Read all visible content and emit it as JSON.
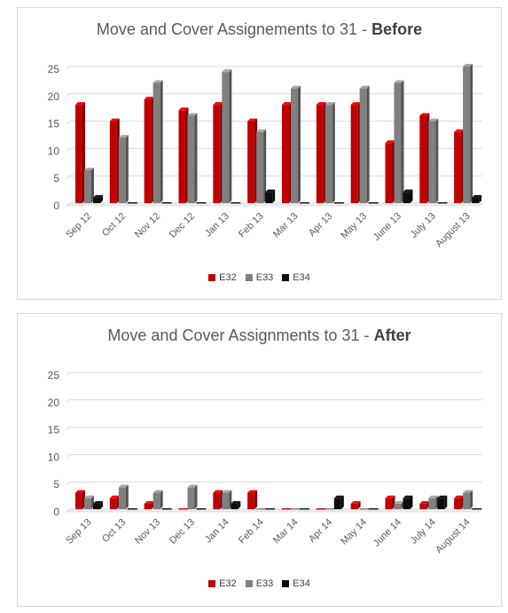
{
  "charts": [
    {
      "title_prefix": "Move and Cover Assignements to 31 -",
      "title_emphasis": "Before"
    },
    {
      "title_prefix": "Move and Cover Assignments to 31 -",
      "title_emphasis": "After"
    }
  ],
  "chart_data": [
    {
      "type": "bar",
      "title": "Move and Cover Assignements to 31 - Before",
      "categories": [
        "Sep 12",
        "Oct 12",
        "Nov 12",
        "Dec 12",
        "Jan 13",
        "Feb 13",
        "Mar 13",
        "Apr 13",
        "May 13",
        "June 13",
        "July 13",
        "August 13"
      ],
      "series": [
        {
          "name": "E32",
          "color": "#c00000",
          "values": [
            18,
            15,
            19,
            17,
            18,
            15,
            18,
            18,
            18,
            11,
            16,
            13
          ]
        },
        {
          "name": "E33",
          "color": "#808080",
          "values": [
            6,
            12,
            22,
            16,
            24,
            13,
            21,
            18,
            21,
            22,
            15,
            25
          ]
        },
        {
          "name": "E34",
          "color": "#0d0d0d",
          "values": [
            1,
            0,
            0,
            0,
            0,
            2,
            0,
            0,
            0,
            2,
            0,
            1
          ]
        }
      ],
      "ylim": [
        0,
        25
      ],
      "yticks": [
        "0",
        "5",
        "10",
        "15",
        "20",
        "25"
      ],
      "grid": true,
      "legend": "bottom"
    },
    {
      "type": "bar",
      "title": "Move and Cover Assignments to 31 - After",
      "categories": [
        "Sep 13",
        "Oct 13",
        "Nov 13",
        "Dec 13",
        "Jan 14",
        "Feb 14",
        "Mar 14",
        "Apr 14",
        "May 14",
        "June 14",
        "July 14",
        "August 14"
      ],
      "series": [
        {
          "name": "E32",
          "color": "#c00000",
          "values": [
            3,
            2,
            1,
            0,
            3,
            3,
            0,
            0,
            1,
            2,
            1,
            2
          ]
        },
        {
          "name": "E33",
          "color": "#808080",
          "values": [
            2,
            4,
            3,
            4,
            3,
            0,
            0,
            0,
            0,
            1,
            2,
            3
          ]
        },
        {
          "name": "E34",
          "color": "#0d0d0d",
          "values": [
            1,
            0,
            0,
            0,
            1,
            0,
            0,
            2,
            0,
            2,
            2,
            0
          ]
        }
      ],
      "ylim": [
        0,
        25
      ],
      "yticks": [
        "0",
        "5",
        "10",
        "15",
        "20",
        "25"
      ],
      "grid": true,
      "legend": "bottom"
    }
  ]
}
